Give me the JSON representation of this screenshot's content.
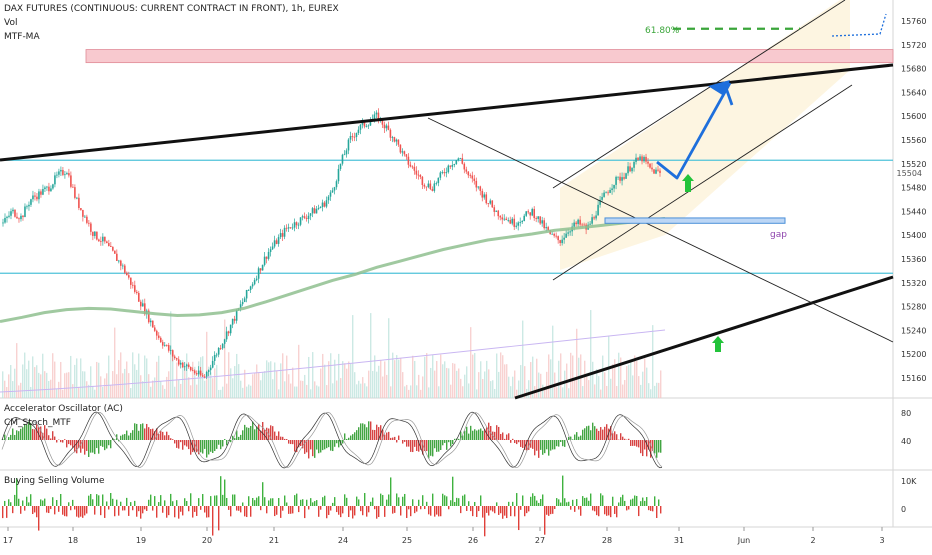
{
  "header": {
    "title": "DAX FUTURES (CONTINUOUS: CURRENT CONTRACT IN FRONT), 1h, EUREX",
    "indicator_1": "Vol",
    "indicator_2": "MTF-MA"
  },
  "panes": {
    "ac_label": "Accelerator Oscillator (AC)",
    "stoch_label": "CM_Stoch_MTF",
    "bsv_label": "Buying Selling Volume"
  },
  "annotations": {
    "fib_label": "61.80%",
    "gap_label": "gap",
    "current_price": "15504"
  },
  "colors": {
    "up": "#26a69a",
    "down": "#ef5350",
    "bull": "#2e9b2e",
    "bear": "#d32f2f",
    "trendline": "#111111",
    "arrow": "#1e6fdc",
    "support_cyan": "#4fc3d9",
    "ma": "#8fbf8f",
    "fib": "#3aa53a",
    "resistance_zone": "#f8c9cf",
    "channel_fill": "#fdf3dc"
  },
  "chart_data": {
    "type": "candlestick",
    "symbol": "DAX FUTURES (CONTINUOUS: CURRENT CONTRACT IN FRONT)",
    "interval": "1h",
    "exchange": "EUREX",
    "x_tick_labels": [
      "17",
      "18",
      "19",
      "20",
      "21",
      "24",
      "25",
      "26",
      "27",
      "28",
      "31",
      "Jun",
      "2",
      "3"
    ],
    "price_axis": {
      "ticks": [
        15760,
        15720,
        15680,
        15640,
        15600,
        15560,
        15520,
        15480,
        15440,
        15400,
        15360,
        15320,
        15280,
        15240,
        15200,
        15160
      ],
      "range": [
        15140,
        15780
      ]
    },
    "current_price": 15504,
    "horizontal_levels": [
      15526,
      15336
    ],
    "resistance_zone": [
      15690,
      15712
    ],
    "fib_level": {
      "label": "61.80%",
      "price": 15747
    },
    "gap_zone": [
      15420,
      15429
    ],
    "close_series": [
      15420,
      15440,
      15430,
      15460,
      15470,
      15480,
      15500,
      15510,
      15460,
      15430,
      15400,
      15390,
      15370,
      15350,
      15320,
      15290,
      15260,
      15230,
      15210,
      15190,
      15180,
      15170,
      15160,
      15190,
      15220,
      15250,
      15280,
      15310,
      15340,
      15370,
      15390,
      15410,
      15420,
      15430,
      15440,
      15450,
      15470,
      15520,
      15560,
      15580,
      15590,
      15600,
      15580,
      15560,
      15530,
      15510,
      15490,
      15480,
      15500,
      15520,
      15530,
      15500,
      15480,
      15460,
      15440,
      15430,
      15420,
      15430,
      15440,
      15420,
      15400,
      15390,
      15410,
      15420,
      15410,
      15440,
      15470,
      15490,
      15500,
      15520,
      15530,
      15510,
      15504
    ],
    "ma_series": [
      15255,
      15262,
      15270,
      15275,
      15277,
      15276,
      15272,
      15268,
      15265,
      15266,
      15270,
      15277,
      15288,
      15300,
      15312,
      15324,
      15334,
      15346,
      15356,
      15366,
      15376,
      15384,
      15392,
      15397,
      15402,
      15408,
      15412,
      15416,
      15420,
      15424,
      15428
    ],
    "oscillator_axis": {
      "ticks": [
        80,
        40
      ]
    },
    "volume_axis": {
      "ticks": [
        "10K",
        "0"
      ]
    }
  }
}
